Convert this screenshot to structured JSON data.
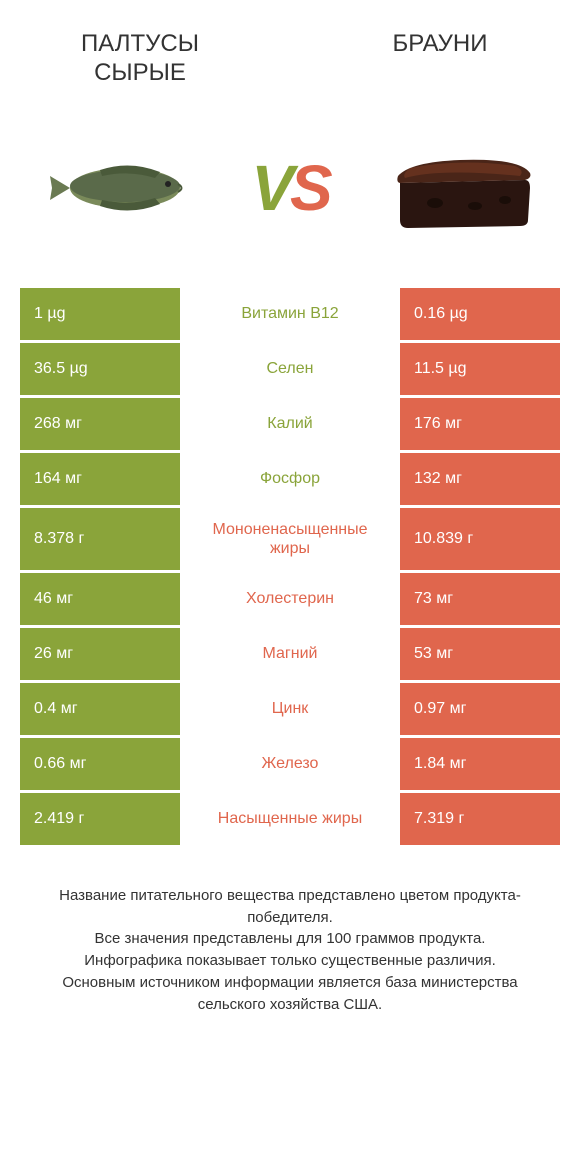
{
  "header": {
    "left_title": "ПАЛТУСЫ\nСЫРЫЕ",
    "right_title": "БРАУНИ"
  },
  "vs": {
    "v": "V",
    "s": "S"
  },
  "colors": {
    "left": "#8aa43a",
    "right": "#e0664d",
    "background": "#ffffff"
  },
  "images": {
    "left_desc": "halibut-fish",
    "right_desc": "brownie-slice"
  },
  "comparison": {
    "type": "comparison-table",
    "rows": [
      {
        "left": "1 µg",
        "label": "Витамин B12",
        "right": "0.16 µg",
        "winner": "left"
      },
      {
        "left": "36.5 µg",
        "label": "Селен",
        "right": "11.5 µg",
        "winner": "left"
      },
      {
        "left": "268 мг",
        "label": "Калий",
        "right": "176 мг",
        "winner": "left"
      },
      {
        "left": "164 мг",
        "label": "Фосфор",
        "right": "132 мг",
        "winner": "left"
      },
      {
        "left": "8.378 г",
        "label": "Мононенасыщенные жиры",
        "right": "10.839 г",
        "winner": "right"
      },
      {
        "left": "46 мг",
        "label": "Холестерин",
        "right": "73 мг",
        "winner": "right"
      },
      {
        "left": "26 мг",
        "label": "Магний",
        "right": "53 мг",
        "winner": "right"
      },
      {
        "left": "0.4 мг",
        "label": "Цинк",
        "right": "0.97 мг",
        "winner": "right"
      },
      {
        "left": "0.66 мг",
        "label": "Железо",
        "right": "1.84 мг",
        "winner": "right"
      },
      {
        "left": "2.419 г",
        "label": "Насыщенные жиры",
        "right": "7.319 г",
        "winner": "right"
      }
    ]
  },
  "footer": {
    "line1": "Название питательного вещества представлено цветом продукта-победителя.",
    "line2": "Все значения представлены для 100 граммов продукта.",
    "line3": "Инфографика показывает только существенные различия.",
    "line4": "Основным источником информации является база министерства сельского хозяйства США."
  }
}
